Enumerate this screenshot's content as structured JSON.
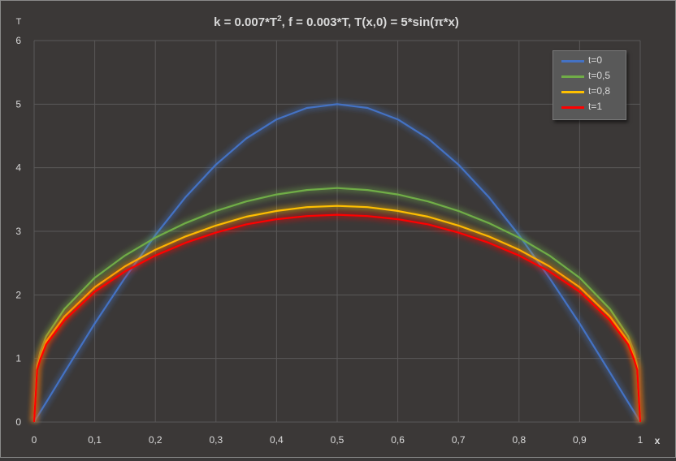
{
  "chart_data": {
    "type": "line",
    "title": "k = 0.007*T², f = 0.003*T,  T(x,0) = 5*sin(π*x)",
    "title_parts": [
      "k = 0.007*T",
      "2",
      ", f = 0.003*T,  T(x,0) = 5*sin(π*x)"
    ],
    "xlabel": "x",
    "ylabel": "T",
    "xlim": [
      0,
      1
    ],
    "ylim": [
      0,
      6
    ],
    "x_ticks": [
      "0",
      "0,1",
      "0,2",
      "0,3",
      "0,4",
      "0,5",
      "0,6",
      "0,7",
      "0,8",
      "0,9",
      "1"
    ],
    "y_ticks": [
      "0",
      "1",
      "2",
      "3",
      "4",
      "5",
      "6"
    ],
    "grid": true,
    "legend_position": "top-right",
    "x": [
      0,
      0.005,
      0.01,
      0.02,
      0.05,
      0.1,
      0.15,
      0.2,
      0.25,
      0.3,
      0.35,
      0.4,
      0.45,
      0.5,
      0.55,
      0.6,
      0.65,
      0.7,
      0.75,
      0.8,
      0.85,
      0.9,
      0.95,
      0.98,
      0.99,
      0.995,
      1
    ],
    "series": [
      {
        "name": "t=0",
        "color": "#4472c4",
        "values": [
          0,
          0.08,
          0.16,
          0.31,
          0.78,
          1.55,
          2.27,
          2.94,
          3.54,
          4.05,
          4.46,
          4.76,
          4.94,
          5.0,
          4.94,
          4.76,
          4.46,
          4.05,
          3.54,
          2.94,
          2.27,
          1.55,
          0.78,
          0.31,
          0.16,
          0.08,
          0
        ]
      },
      {
        "name": "t=0,5",
        "color": "#70ad47",
        "values": [
          0,
          0.9,
          1.1,
          1.35,
          1.78,
          2.27,
          2.62,
          2.9,
          3.13,
          3.32,
          3.47,
          3.58,
          3.65,
          3.68,
          3.65,
          3.58,
          3.47,
          3.32,
          3.13,
          2.9,
          2.62,
          2.27,
          1.78,
          1.35,
          1.1,
          0.9,
          0
        ]
      },
      {
        "name": "t=0,8",
        "color": "#ffc000",
        "values": [
          0,
          0.85,
          1.02,
          1.27,
          1.66,
          2.12,
          2.45,
          2.71,
          2.92,
          3.09,
          3.23,
          3.32,
          3.38,
          3.4,
          3.38,
          3.32,
          3.23,
          3.09,
          2.92,
          2.71,
          2.45,
          2.12,
          1.66,
          1.27,
          1.02,
          0.85,
          0
        ]
      },
      {
        "name": "t=1",
        "color": "#ff0000",
        "values": [
          0,
          0.82,
          0.98,
          1.22,
          1.6,
          2.05,
          2.37,
          2.62,
          2.82,
          2.98,
          3.11,
          3.19,
          3.24,
          3.26,
          3.24,
          3.19,
          3.11,
          2.98,
          2.82,
          2.62,
          2.37,
          2.05,
          1.6,
          1.22,
          0.98,
          0.82,
          0
        ]
      }
    ]
  }
}
